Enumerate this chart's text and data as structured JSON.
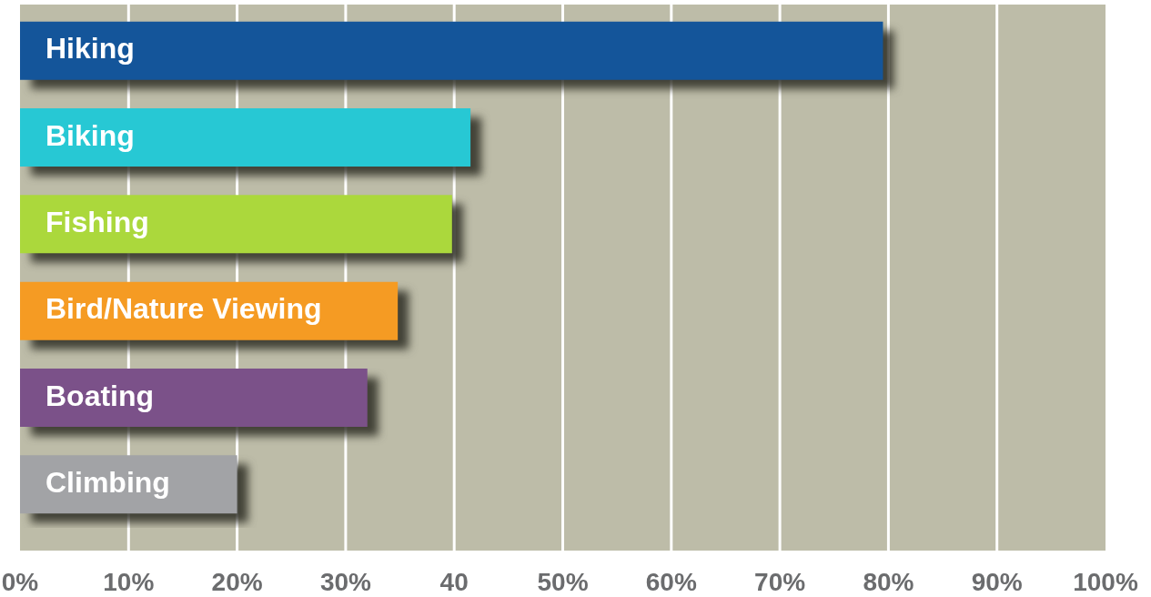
{
  "chart_data": {
    "type": "bar",
    "orientation": "horizontal",
    "categories": [
      "Hiking",
      "Biking",
      "Fishing",
      "Bird/Nature Viewing",
      "Boating",
      "Climbing"
    ],
    "values": [
      79.5,
      41.5,
      39.8,
      34.8,
      32,
      20
    ],
    "colors": [
      "#14559a",
      "#27c8d4",
      "#abd83c",
      "#f59b23",
      "#7b5189",
      "#a2a3a6"
    ],
    "xlim": [
      0,
      100
    ],
    "xticks": [
      {
        "value": 0,
        "label": "0%"
      },
      {
        "value": 10,
        "label": "10%"
      },
      {
        "value": 20,
        "label": "20%"
      },
      {
        "value": 30,
        "label": "30%"
      },
      {
        "value": 40,
        "label": "40"
      },
      {
        "value": 50,
        "label": "50%"
      },
      {
        "value": 60,
        "label": "60%"
      },
      {
        "value": 70,
        "label": "70%"
      },
      {
        "value": 80,
        "label": "80%"
      },
      {
        "value": 90,
        "label": "90%"
      },
      {
        "value": 100,
        "label": "100%"
      }
    ],
    "grid": "x"
  }
}
